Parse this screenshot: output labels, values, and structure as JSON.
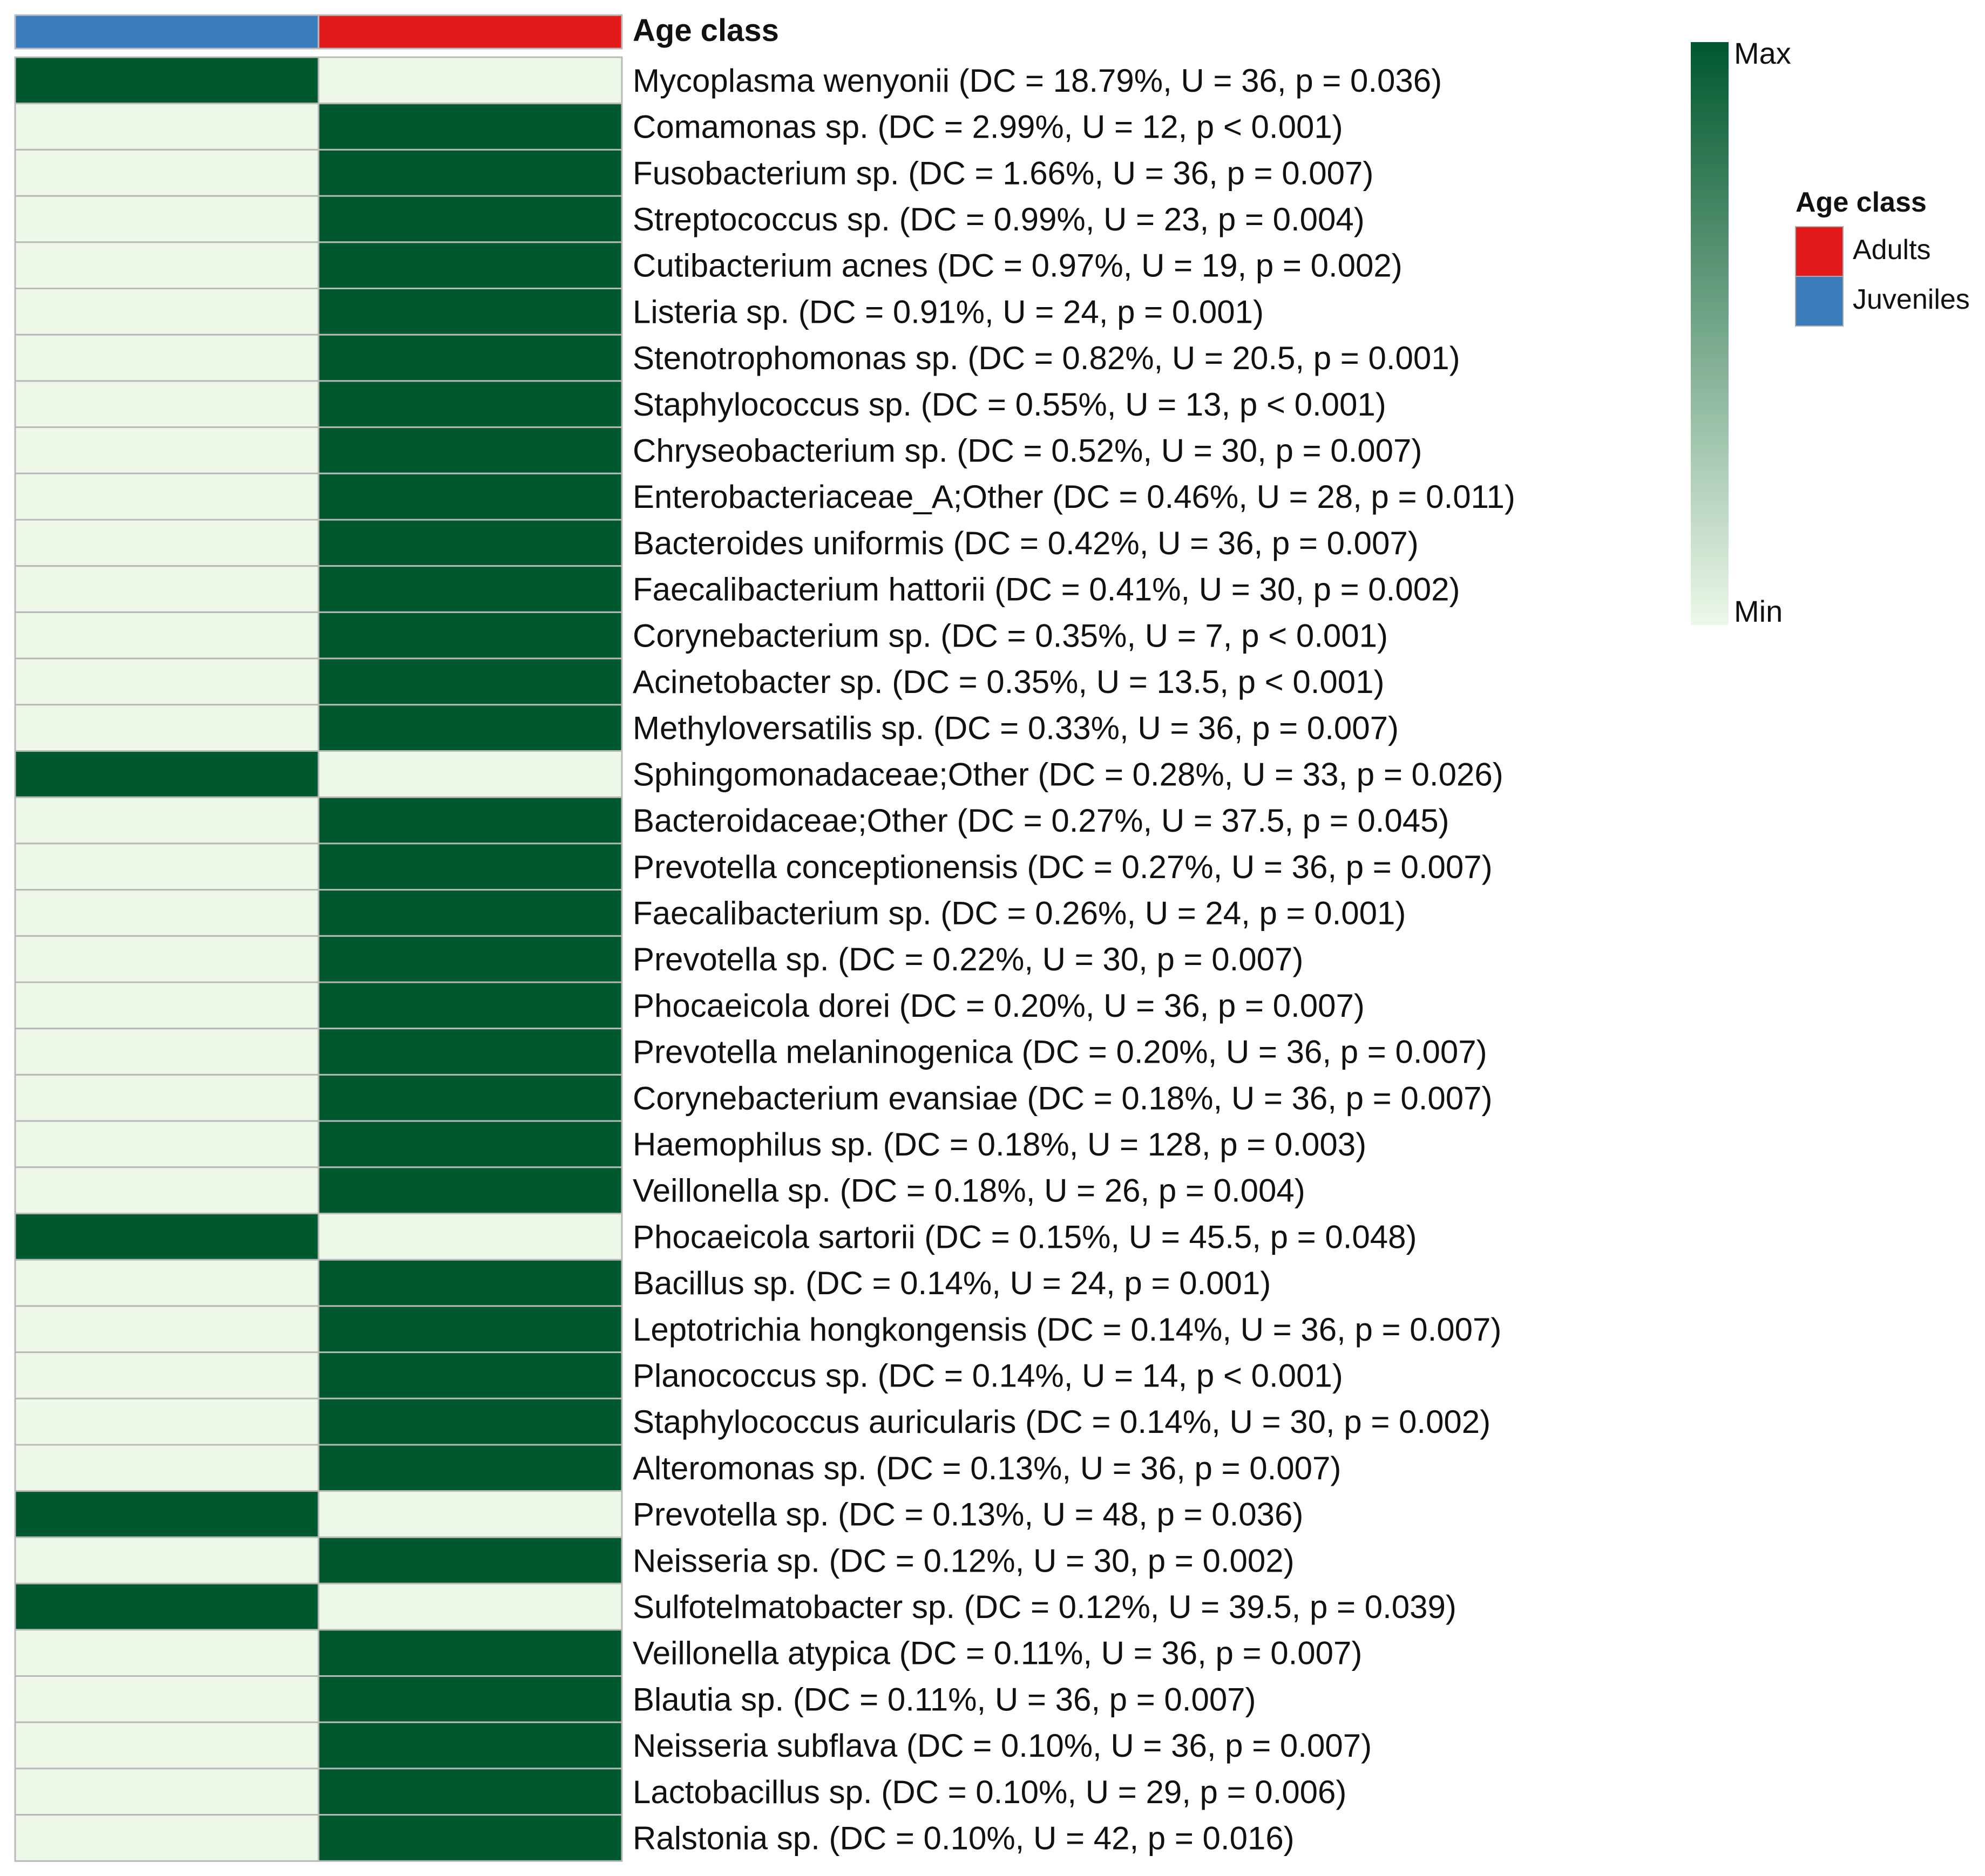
{
  "chart_data": {
    "type": "heatmap",
    "annotation_title": "Age class",
    "columns": [
      {
        "group": "Juveniles",
        "color": "#3a7dbd"
      },
      {
        "group": "Adults",
        "color": "#e31a1c"
      }
    ],
    "rows": [
      {
        "label": "Mycoplasma wenyonii (DC = 18.79%, U = 36, p = 0.036)",
        "values": [
          1,
          0
        ]
      },
      {
        "label": "Comamonas sp. (DC = 2.99%, U = 12, p < 0.001)",
        "values": [
          0,
          1
        ]
      },
      {
        "label": "Fusobacterium sp. (DC = 1.66%, U = 36, p = 0.007)",
        "values": [
          0,
          1
        ]
      },
      {
        "label": "Streptococcus sp. (DC = 0.99%, U = 23, p = 0.004)",
        "values": [
          0,
          1
        ]
      },
      {
        "label": "Cutibacterium acnes (DC = 0.97%, U = 19, p = 0.002)",
        "values": [
          0,
          1
        ]
      },
      {
        "label": "Listeria sp. (DC = 0.91%, U = 24, p = 0.001)",
        "values": [
          0,
          1
        ]
      },
      {
        "label": "Stenotrophomonas sp. (DC = 0.82%, U = 20.5, p = 0.001)",
        "values": [
          0,
          1
        ]
      },
      {
        "label": "Staphylococcus sp. (DC = 0.55%, U = 13, p < 0.001)",
        "values": [
          0,
          1
        ]
      },
      {
        "label": "Chryseobacterium sp. (DC = 0.52%, U = 30, p = 0.007)",
        "values": [
          0,
          1
        ]
      },
      {
        "label": "Enterobacteriaceae_A;Other (DC = 0.46%, U = 28, p = 0.011)",
        "values": [
          0,
          1
        ]
      },
      {
        "label": "Bacteroides uniformis (DC = 0.42%, U = 36, p = 0.007)",
        "values": [
          0,
          1
        ]
      },
      {
        "label": "Faecalibacterium hattorii (DC = 0.41%, U = 30, p = 0.002)",
        "values": [
          0,
          1
        ]
      },
      {
        "label": "Corynebacterium sp. (DC = 0.35%, U = 7, p < 0.001)",
        "values": [
          0,
          1
        ]
      },
      {
        "label": "Acinetobacter sp. (DC = 0.35%, U = 13.5, p < 0.001)",
        "values": [
          0,
          1
        ]
      },
      {
        "label": "Methyloversatilis sp. (DC = 0.33%, U = 36, p = 0.007)",
        "values": [
          0,
          1
        ]
      },
      {
        "label": "Sphingomonadaceae;Other (DC = 0.28%, U = 33, p = 0.026)",
        "values": [
          1,
          0
        ]
      },
      {
        "label": "Bacteroidaceae;Other (DC = 0.27%, U = 37.5, p = 0.045)",
        "values": [
          0,
          1
        ]
      },
      {
        "label": "Prevotella conceptionensis (DC = 0.27%, U = 36, p = 0.007)",
        "values": [
          0,
          1
        ]
      },
      {
        "label": "Faecalibacterium sp. (DC = 0.26%, U = 24, p = 0.001)",
        "values": [
          0,
          1
        ]
      },
      {
        "label": "Prevotella sp. (DC = 0.22%, U = 30, p = 0.007)",
        "values": [
          0,
          1
        ]
      },
      {
        "label": "Phocaeicola dorei (DC = 0.20%, U = 36, p = 0.007)",
        "values": [
          0,
          1
        ]
      },
      {
        "label": "Prevotella melaninogenica (DC = 0.20%, U = 36, p = 0.007)",
        "values": [
          0,
          1
        ]
      },
      {
        "label": "Corynebacterium evansiae (DC = 0.18%, U = 36, p = 0.007)",
        "values": [
          0,
          1
        ]
      },
      {
        "label": "Haemophilus sp. (DC = 0.18%, U = 128, p = 0.003)",
        "values": [
          0,
          1
        ]
      },
      {
        "label": "Veillonella sp. (DC = 0.18%, U = 26, p = 0.004)",
        "values": [
          0,
          1
        ]
      },
      {
        "label": "Phocaeicola sartorii (DC = 0.15%, U = 45.5, p = 0.048)",
        "values": [
          1,
          0
        ]
      },
      {
        "label": "Bacillus sp. (DC = 0.14%, U = 24, p = 0.001)",
        "values": [
          0,
          1
        ]
      },
      {
        "label": "Leptotrichia hongkongensis (DC = 0.14%, U = 36, p = 0.007)",
        "values": [
          0,
          1
        ]
      },
      {
        "label": "Planococcus sp. (DC = 0.14%, U = 14, p < 0.001)",
        "values": [
          0,
          1
        ]
      },
      {
        "label": "Staphylococcus auricularis (DC = 0.14%, U = 30, p = 0.002)",
        "values": [
          0,
          1
        ]
      },
      {
        "label": "Alteromonas sp. (DC = 0.13%, U = 36, p = 0.007)",
        "values": [
          0,
          1
        ]
      },
      {
        "label": "Prevotella sp. (DC = 0.13%, U = 48, p = 0.036)",
        "values": [
          1,
          0
        ]
      },
      {
        "label": "Neisseria sp. (DC = 0.12%, U = 30, p = 0.002)",
        "values": [
          0,
          1
        ]
      },
      {
        "label": "Sulfotelmatobacter sp. (DC = 0.12%, U = 39.5, p = 0.039)",
        "values": [
          1,
          0
        ]
      },
      {
        "label": "Veillonella atypica (DC = 0.11%, U = 36, p = 0.007)",
        "values": [
          0,
          1
        ]
      },
      {
        "label": "Blautia sp. (DC = 0.11%, U = 36, p = 0.007)",
        "values": [
          0,
          1
        ]
      },
      {
        "label": "Neisseria subflava (DC = 0.10%, U = 36, p = 0.007)",
        "values": [
          0,
          1
        ]
      },
      {
        "label": "Lactobacillus sp. (DC = 0.10%, U = 29, p = 0.006)",
        "values": [
          0,
          1
        ]
      },
      {
        "label": "Ralstonia sp. (DC = 0.10%, U = 42, p = 0.016)",
        "values": [
          0,
          1
        ]
      }
    ],
    "color_scale": {
      "min_label": "Min",
      "max_label": "Max",
      "min_color": "#edf8e9",
      "max_color": "#00582f"
    },
    "legend": {
      "title": "Age class",
      "position": "right",
      "items": [
        {
          "label": "Adults",
          "color": "#e31a1c"
        },
        {
          "label": "Juveniles",
          "color": "#3a7dbd"
        }
      ]
    }
  }
}
